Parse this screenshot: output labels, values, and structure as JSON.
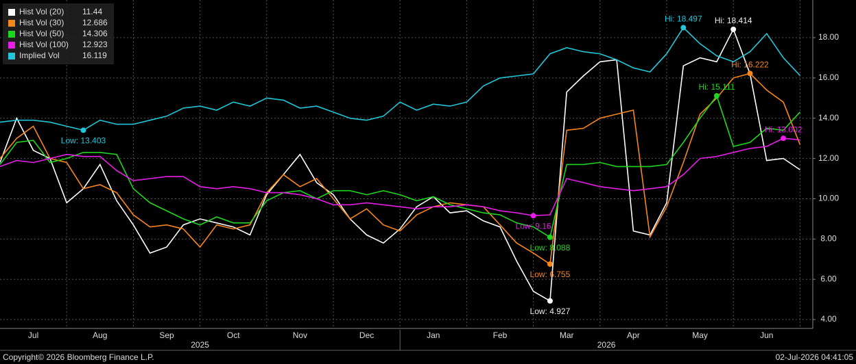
{
  "chart_data": {
    "type": "line",
    "categories": [
      null,
      null,
      "Jul",
      null,
      null,
      null,
      "Aug",
      null,
      null,
      null,
      "Sep",
      null,
      null,
      null,
      "Oct",
      null,
      null,
      null,
      "Nov",
      null,
      null,
      null,
      "Dec",
      null,
      null,
      null,
      "Jan",
      null,
      null,
      null,
      "Feb",
      null,
      null,
      null,
      "Mar",
      null,
      null,
      null,
      "Apr",
      null,
      null,
      null,
      "May",
      null,
      null,
      null,
      "Jun",
      null,
      null
    ],
    "x_groups": [
      "2025",
      "2026"
    ],
    "ylim": [
      3.56,
      19.87
    ],
    "yticks": [
      {
        "value": 4,
        "label": "4.00"
      },
      {
        "value": 6,
        "label": "6.00"
      },
      {
        "value": 8,
        "label": "8.00"
      },
      {
        "value": 10,
        "label": "10.00"
      },
      {
        "value": 12,
        "label": "12.00"
      },
      {
        "value": 14,
        "label": "14.00"
      },
      {
        "value": 16,
        "label": "16.00"
      },
      {
        "value": 18,
        "label": "18.00"
      }
    ],
    "grid": true,
    "series": [
      {
        "name": "Hist Vol (20)",
        "color": "#ffffff",
        "values": [
          11.8,
          14.0,
          12.4,
          12.0,
          9.8,
          10.5,
          11.7,
          9.9,
          8.7,
          7.3,
          7.6,
          8.7,
          9.0,
          8.8,
          8.6,
          8.2,
          10.2,
          11.2,
          12.2,
          10.8,
          10.2,
          9.0,
          8.2,
          7.8,
          8.5,
          9.6,
          10.1,
          9.3,
          9.4,
          8.9,
          8.6,
          6.9,
          5.4,
          4.927,
          15.3,
          16.1,
          16.8,
          16.9,
          8.4,
          8.2,
          9.8,
          16.6,
          17.0,
          16.8,
          18.414,
          16.2,
          11.9,
          12.0,
          11.44
        ],
        "value_labels": [
          null,
          null,
          null,
          null,
          null,
          null,
          null,
          null,
          null,
          null,
          null,
          null,
          null,
          null,
          null,
          null,
          null,
          null,
          null,
          null,
          null,
          null,
          null,
          null,
          null,
          null,
          null,
          null,
          null,
          null,
          null,
          null,
          null,
          "Low: 4.927",
          null,
          null,
          null,
          null,
          null,
          null,
          null,
          null,
          null,
          null,
          "Hi: 18.414",
          null,
          null,
          null,
          null
        ]
      },
      {
        "name": "Hist Vol (30)",
        "color": "#f7861c",
        "values": [
          12.0,
          13.0,
          13.6,
          12.0,
          11.8,
          10.5,
          10.7,
          10.3,
          9.2,
          8.6,
          8.7,
          8.5,
          7.6,
          8.7,
          8.5,
          8.7,
          10.3,
          11.2,
          10.6,
          11.0,
          10.0,
          9.0,
          9.5,
          8.7,
          8.4,
          9.2,
          9.6,
          9.8,
          9.7,
          9.6,
          8.7,
          7.8,
          7.3,
          6.755,
          13.4,
          13.5,
          14.0,
          14.2,
          14.4,
          8.1,
          9.6,
          11.8,
          14.2,
          15.0,
          16.0,
          16.222,
          15.4,
          14.8,
          12.686
        ],
        "value_labels": [
          null,
          null,
          null,
          null,
          null,
          null,
          null,
          null,
          null,
          null,
          null,
          null,
          null,
          null,
          null,
          null,
          null,
          null,
          null,
          null,
          null,
          null,
          null,
          null,
          null,
          null,
          null,
          null,
          null,
          null,
          null,
          null,
          null,
          "Low: 6.755",
          null,
          null,
          null,
          null,
          null,
          null,
          null,
          null,
          null,
          null,
          null,
          "Hi: 16.222",
          null,
          null,
          null
        ]
      },
      {
        "name": "Hist Vol (50)",
        "color": "#1fd61f",
        "values": [
          11.7,
          12.8,
          12.9,
          11.8,
          12.0,
          12.3,
          12.3,
          12.2,
          10.5,
          9.8,
          9.4,
          9.0,
          8.7,
          9.1,
          8.8,
          8.8,
          9.9,
          10.3,
          10.4,
          10.0,
          10.4,
          10.4,
          10.2,
          10.4,
          10.2,
          9.9,
          10.1,
          9.7,
          9.5,
          9.3,
          9.2,
          8.8,
          8.6,
          8.088,
          11.7,
          11.7,
          11.8,
          11.6,
          11.6,
          11.6,
          11.7,
          12.8,
          14.0,
          15.111,
          12.6,
          12.8,
          13.5,
          13.4,
          14.306
        ],
        "value_labels": [
          null,
          null,
          null,
          null,
          null,
          null,
          null,
          null,
          null,
          null,
          null,
          null,
          null,
          null,
          null,
          null,
          null,
          null,
          null,
          null,
          null,
          null,
          null,
          null,
          null,
          null,
          null,
          null,
          null,
          null,
          null,
          null,
          null,
          "Low: 8.088",
          null,
          null,
          null,
          null,
          null,
          null,
          null,
          null,
          null,
          "Hi: 15.111",
          null,
          null,
          null,
          null,
          null
        ]
      },
      {
        "name": "Hist Vol (100)",
        "color": "#e61ee6",
        "values": [
          11.6,
          11.9,
          11.8,
          12.0,
          12.2,
          12.1,
          12.1,
          11.4,
          10.9,
          11.0,
          11.1,
          11.1,
          10.6,
          10.5,
          10.6,
          10.5,
          10.3,
          10.3,
          10.2,
          10.0,
          9.7,
          9.7,
          9.8,
          9.7,
          9.6,
          9.5,
          9.6,
          9.6,
          9.7,
          9.6,
          9.4,
          9.3,
          9.16,
          9.2,
          11.0,
          10.8,
          10.6,
          10.5,
          10.4,
          10.5,
          10.6,
          11.2,
          12.0,
          12.1,
          12.3,
          12.5,
          12.6,
          13.002,
          12.923
        ],
        "value_labels": [
          null,
          null,
          null,
          null,
          null,
          null,
          null,
          null,
          null,
          null,
          null,
          null,
          null,
          null,
          null,
          null,
          null,
          null,
          null,
          null,
          null,
          null,
          null,
          null,
          null,
          null,
          null,
          null,
          null,
          null,
          null,
          null,
          "Low: 9.16",
          null,
          null,
          null,
          null,
          null,
          null,
          null,
          null,
          null,
          null,
          null,
          null,
          null,
          null,
          "Hi: 13.002",
          null
        ]
      },
      {
        "name": "Implied Vol",
        "color": "#22c6d8",
        "values": [
          13.8,
          13.9,
          13.9,
          13.8,
          13.6,
          13.403,
          13.9,
          13.7,
          13.7,
          13.9,
          14.1,
          14.5,
          14.6,
          14.4,
          14.8,
          14.6,
          15.0,
          14.9,
          14.5,
          14.6,
          14.3,
          14.0,
          13.9,
          14.1,
          14.8,
          14.4,
          14.7,
          14.6,
          14.8,
          15.6,
          16.0,
          16.1,
          16.2,
          17.2,
          17.5,
          17.3,
          17.2,
          16.9,
          16.5,
          16.3,
          17.2,
          18.497,
          17.7,
          17.1,
          16.8,
          17.3,
          18.2,
          17.0,
          16.119
        ],
        "value_labels": [
          null,
          null,
          null,
          null,
          null,
          "Low: 13.403",
          null,
          null,
          null,
          null,
          null,
          null,
          null,
          null,
          null,
          null,
          null,
          null,
          null,
          null,
          null,
          null,
          null,
          null,
          null,
          null,
          null,
          null,
          null,
          null,
          null,
          null,
          null,
          null,
          null,
          null,
          null,
          null,
          null,
          null,
          null,
          "Hi: 18.497",
          null,
          null,
          null,
          null,
          null,
          null,
          null
        ]
      }
    ]
  },
  "footer": {
    "copyright": "Copyright© 2026 Bloomberg Finance L.P.",
    "timestamp": "02-Jul-2026 04:41:05"
  }
}
